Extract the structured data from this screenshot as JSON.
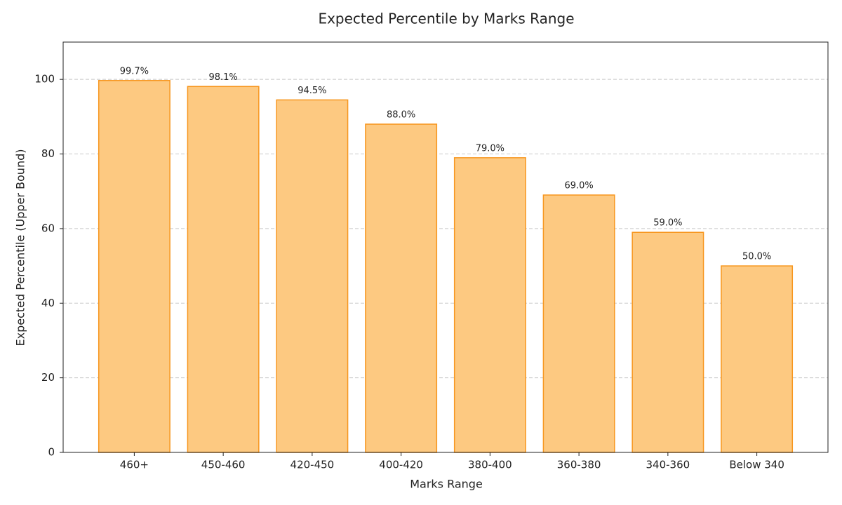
{
  "chart_data": {
    "type": "bar",
    "title": "Expected Percentile by Marks Range",
    "xlabel": "Marks Range",
    "ylabel": "Expected Percentile (Upper Bound)",
    "categories": [
      "460+",
      "450-460",
      "420-450",
      "400-420",
      "380-400",
      "360-380",
      "340-360",
      "Below 340"
    ],
    "values": [
      99.7,
      98.1,
      94.5,
      88.0,
      79.0,
      69.0,
      59.0,
      50.0
    ],
    "value_labels": [
      "99.7%",
      "98.1%",
      "94.5%",
      "88.0%",
      "79.0%",
      "69.0%",
      "59.0%",
      "50.0%"
    ],
    "color": "#fdc981",
    "edgecolor": "#f7961e",
    "ylim": [
      0,
      110
    ],
    "yticks": [
      0,
      20,
      40,
      60,
      80,
      100
    ],
    "grid": true
  }
}
